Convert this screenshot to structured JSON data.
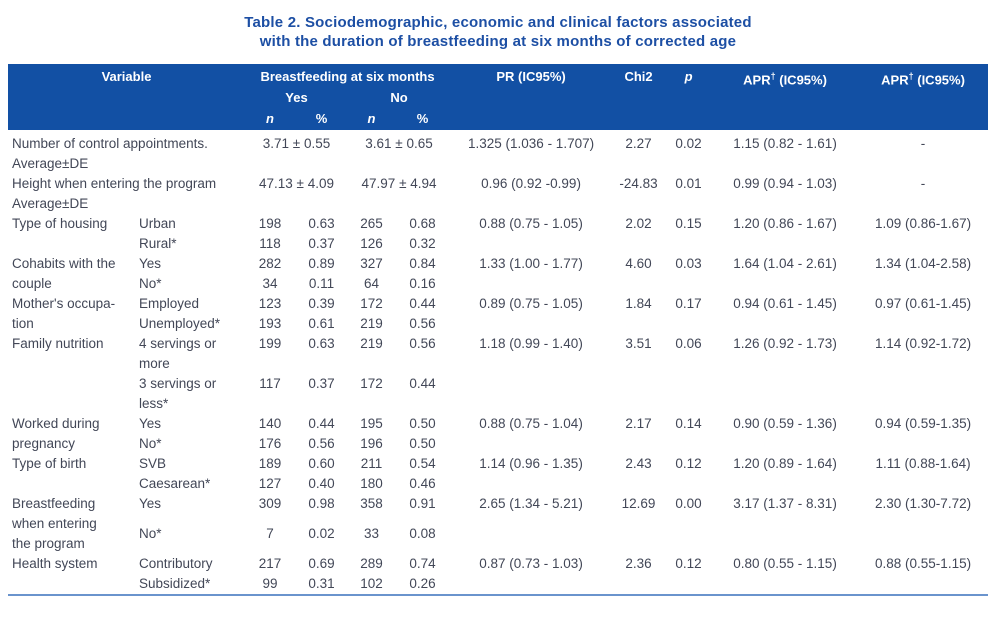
{
  "title": {
    "line1": "Table 2. Sociodemographic, economic and clinical factors associated",
    "line2": "with the duration of breastfeeding at six months of corrected age"
  },
  "colors": {
    "header_bg": "#1250a4",
    "header_text": "#ffffff",
    "title_text": "#1d4fa4",
    "body_text": "#424757",
    "bottom_border": "#6a94cd"
  },
  "header": {
    "variable": "Variable",
    "group": "Breastfeeding at six months",
    "yes": "Yes",
    "no": "No",
    "n": "n",
    "pct": "%",
    "pr": "PR (IC95%)",
    "chi2": "Chi2",
    "p": "p",
    "apr": {
      "base": "APR",
      "sup": "†",
      "rest": " (IC95%)"
    }
  },
  "table": {
    "groups": [
      {
        "type": "continuous",
        "label": "Number of control appointments.",
        "label2": "Average±DE",
        "yes": "3.71 ± 0.55",
        "no": "3.61 ± 0.65",
        "pr": "1.325 (1.036 - 1.707)",
        "chi2": "2.27",
        "p": "0.02",
        "apr1": "1.15 (0.82 - 1.61)",
        "apr2": "-"
      },
      {
        "type": "continuous",
        "label": "Height when entering the program",
        "label2": "Average±DE",
        "yes": "47.13 ± 4.09",
        "no": "47.97 ± 4.94",
        "pr": "0.96 (0.92 -0.99)",
        "chi2": "-24.83",
        "p": "0.01",
        "apr1": "0.99 (0.94 - 1.03)",
        "apr2": "-"
      },
      {
        "type": "categorical",
        "label": "Type of housing",
        "rows": [
          {
            "category": "Urban",
            "yes_n": "198",
            "yes_pct": "0.63",
            "no_n": "265",
            "no_pct": "0.68"
          },
          {
            "category": "Rural*",
            "yes_n": "118",
            "yes_pct": "0.37",
            "no_n": "126",
            "no_pct": "0.32"
          }
        ],
        "pr": "0.88 (0.75 - 1.05)",
        "chi2": "2.02",
        "p": "0.15",
        "apr1": "1.20 (0.86 - 1.67)",
        "apr2": "1.09 (0.86-1.67)"
      },
      {
        "type": "categorical",
        "label": "Cohabits with the\ncouple",
        "rows": [
          {
            "category": "Yes",
            "yes_n": "282",
            "yes_pct": "0.89",
            "no_n": "327",
            "no_pct": "0.84"
          },
          {
            "category": "No*",
            "yes_n": "34",
            "yes_pct": "0.11",
            "no_n": "64",
            "no_pct": "0.16"
          }
        ],
        "pr": "1.33 (1.00 - 1.77)",
        "chi2": "4.60",
        "p": "0.03",
        "apr1": "1.64 (1.04 - 2.61)",
        "apr2": "1.34 (1.04-2.58)"
      },
      {
        "type": "categorical",
        "label": "Mother's occupa-\ntion",
        "rows": [
          {
            "category": "Employed",
            "yes_n": "123",
            "yes_pct": "0.39",
            "no_n": "172",
            "no_pct": "0.44"
          },
          {
            "category": "Unemployed*",
            "yes_n": "193",
            "yes_pct": "0.61",
            "no_n": "219",
            "no_pct": "0.56"
          }
        ],
        "pr": "0.89 (0.75 - 1.05)",
        "chi2": "1.84",
        "p": "0.17",
        "apr1": "0.94 (0.61 - 1.45)",
        "apr2": "0.97 (0.61-1.45)"
      },
      {
        "type": "categorical",
        "label": "Family nutrition",
        "rows": [
          {
            "category": "4 servings or\nmore",
            "yes_n": "199",
            "yes_pct": "0.63",
            "no_n": "219",
            "no_pct": "0.56"
          },
          {
            "category": "3 servings or\nless*",
            "yes_n": "117",
            "yes_pct": "0.37",
            "no_n": "172",
            "no_pct": "0.44"
          }
        ],
        "pr": "1.18 (0.99 - 1.40)",
        "chi2": "3.51",
        "p": "0.06",
        "apr1": "1.26 (0.92 - 1.73)",
        "apr2": "1.14 (0.92-1.72)"
      },
      {
        "type": "categorical",
        "label": "Worked during\npregnancy",
        "rows": [
          {
            "category": "Yes",
            "yes_n": "140",
            "yes_pct": "0.44",
            "no_n": "195",
            "no_pct": "0.50"
          },
          {
            "category": "No*",
            "yes_n": "176",
            "yes_pct": "0.56",
            "no_n": "196",
            "no_pct": "0.50"
          }
        ],
        "pr": "0.88 (0.75 - 1.04)",
        "chi2": "2.17",
        "p": "0.14",
        "apr1": "0.90 (0.59 - 1.36)",
        "apr2": "0.94 (0.59-1.35)"
      },
      {
        "type": "categorical",
        "label": "Type of birth",
        "rows": [
          {
            "category": "SVB",
            "yes_n": "189",
            "yes_pct": "0.60",
            "no_n": "211",
            "no_pct": "0.54"
          },
          {
            "category": "Caesarean*",
            "yes_n": "127",
            "yes_pct": "0.40",
            "no_n": "180",
            "no_pct": "0.46"
          }
        ],
        "pr": "1.14 (0.96 - 1.35)",
        "chi2": "2.43",
        "p": "0.12",
        "apr1": "1.20 (0.89 - 1.64)",
        "apr2": "1.11 (0.88-1.64)"
      },
      {
        "type": "categorical",
        "label": "Breastfeeding\nwhen entering\nthe program",
        "rows": [
          {
            "category": "Yes",
            "yes_n": "309",
            "yes_pct": "0.98",
            "no_n": "358",
            "no_pct": "0.91"
          },
          {
            "category": "No*",
            "yes_n": "7",
            "yes_pct": "0.02",
            "no_n": "33",
            "no_pct": "0.08"
          }
        ],
        "pr": "2.65 (1.34 - 5.21)",
        "chi2": "12.69",
        "p": "0.00",
        "apr1": "3.17 (1.37 - 8.31)",
        "apr2": "2.30 (1.30-7.72)"
      },
      {
        "type": "categorical",
        "label": "Health system",
        "rows": [
          {
            "category": "Contributory",
            "yes_n": "217",
            "yes_pct": "0.69",
            "no_n": "289",
            "no_pct": "0.74"
          },
          {
            "category": "Subsidized*",
            "yes_n": "99",
            "yes_pct": "0.31",
            "no_n": "102",
            "no_pct": "0.26"
          }
        ],
        "pr": "0.87 (0.73 - 1.03)",
        "chi2": "2.36",
        "p": "0.12",
        "apr1": "0.80 (0.55 - 1.15)",
        "apr2": "0.88 (0.55-1.15)"
      }
    ]
  }
}
